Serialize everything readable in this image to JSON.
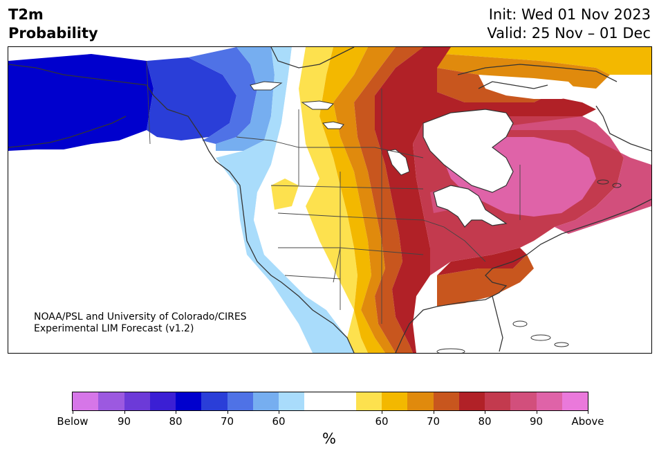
{
  "header": {
    "title_line1": "T2m",
    "title_line2": "Probability",
    "init": "Init: Wed 01 Nov 2023",
    "valid": "Valid: 25 Nov – 01 Dec"
  },
  "credit": {
    "line1": "NOAA/PSL and University of Colorado/CIRES",
    "line2": "Experimental LIM Forecast (v1.2)"
  },
  "colorbar": {
    "colors": [
      "#d676e8",
      "#9c59e0",
      "#6c3ad8",
      "#3b1fd4",
      "#0000cd",
      "#2a3ed8",
      "#4f72e6",
      "#76aef0",
      "#a9dcfb",
      "#ffffff",
      "#ffffff",
      "#fde14e",
      "#f3b800",
      "#e08a0d",
      "#c8561e",
      "#b12127",
      "#c33a4e",
      "#d24f7c",
      "#df63a8",
      "#ea79db"
    ],
    "tick_labels": [
      "Below",
      "90",
      "80",
      "70",
      "60",
      "60",
      "70",
      "80",
      "90",
      "Above"
    ],
    "unit": "%"
  },
  "map_colors": {
    "deep_blue": "#0000cd",
    "blue": "#2a3ed8",
    "mid_blue": "#4f72e6",
    "light_blue": "#76aef0",
    "pale_blue": "#a9dcfb",
    "yellow": "#fde14e",
    "gold": "#f3b800",
    "orange": "#e08a0d",
    "dark_orange": "#c8561e",
    "red": "#b12127",
    "crimson": "#c33a4e",
    "rose": "#d24f7c",
    "pink": "#df63a8",
    "magenta": "#ea79db",
    "border": "#333333"
  }
}
